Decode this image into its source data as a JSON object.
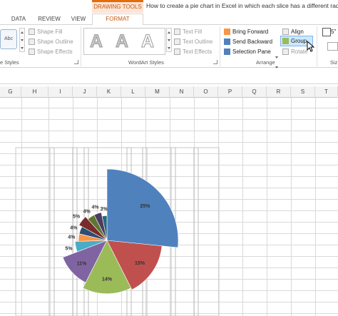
{
  "titlebar": {
    "contextual_tab": "DRAWING TOOLS",
    "document_title": "How to create a pie chart in Excel in which each slice has a different radius b"
  },
  "tabs": [
    {
      "label": "DATA"
    },
    {
      "label": "REVIEW"
    },
    {
      "label": "VIEW"
    },
    {
      "label": "FORMAT"
    }
  ],
  "ribbon": {
    "shape_styles": {
      "preview": "Abc",
      "shape_fill": "Shape Fill",
      "shape_outline": "Shape Outline",
      "shape_effects": "Shape Effects",
      "group_label": "e Styles"
    },
    "wordart": {
      "letter": "A",
      "text_fill": "Text Fill",
      "text_outline": "Text Outline",
      "text_effects": "Text Effects",
      "group_label": "WordArt Styles"
    },
    "arrange": {
      "bring_forward": "Bring Forward",
      "send_backward": "Send Backward",
      "selection_pane": "Selection Pane",
      "align": "Align",
      "group": "Group",
      "rotate": "Rotate",
      "group_label": "Arrange"
    },
    "size": {
      "height_value": "5\"",
      "group_label": "Siz"
    }
  },
  "columns": [
    "G",
    "H",
    "I",
    "J",
    "K",
    "L",
    "M",
    "N",
    "O",
    "P",
    "Q",
    "R",
    "S",
    "T"
  ],
  "chart_data": {
    "type": "pie",
    "title": "",
    "labels": [
      "25%",
      "15%",
      "14%",
      "11%",
      "5%",
      "4%",
      "4%",
      "5%",
      "4%",
      "4%",
      "3%"
    ],
    "slices": [
      {
        "label": "25%",
        "percent": 25,
        "color": "#4f81bd"
      },
      {
        "label": "15%",
        "percent": 15,
        "color": "#c0504d"
      },
      {
        "label": "14%",
        "percent": 14,
        "color": "#9bbb59"
      },
      {
        "label": "11%",
        "percent": 11,
        "color": "#8064a2"
      },
      {
        "label": "5%",
        "percent": 5,
        "color": "#4bacc6"
      },
      {
        "label": "4%",
        "percent": 4,
        "color": "#f79646"
      },
      {
        "label": "4%",
        "percent": 4,
        "color": "#2c4d75"
      },
      {
        "label": "5%",
        "percent": 5,
        "color": "#772c2a"
      },
      {
        "label": "4%",
        "percent": 4,
        "color": "#5f7530"
      },
      {
        "label": "4%",
        "percent": 4,
        "color": "#4d3b62"
      },
      {
        "label": "3%",
        "percent": 3,
        "color": "#276a7c"
      }
    ]
  }
}
